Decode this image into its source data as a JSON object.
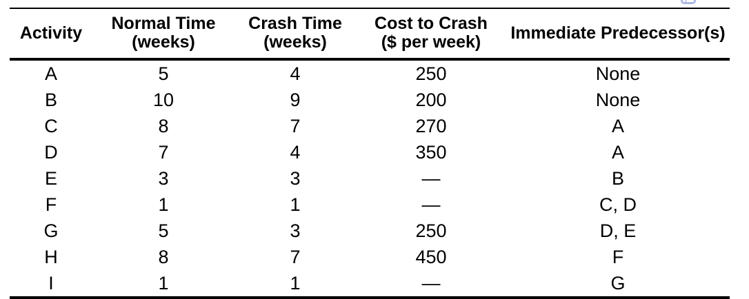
{
  "table": {
    "columns": [
      "Activity",
      "Normal Time\n(weeks)",
      "Crash Time\n(weeks)",
      "Cost to Crash\n($ per week)",
      "Immediate Predecessor(s)"
    ],
    "rows": [
      [
        "A",
        "5",
        "4",
        "250",
        "None"
      ],
      [
        "B",
        "10",
        "9",
        "200",
        "None"
      ],
      [
        "C",
        "8",
        "7",
        "270",
        "A"
      ],
      [
        "D",
        "7",
        "4",
        "350",
        "A"
      ],
      [
        "E",
        "3",
        "3",
        "—",
        "B"
      ],
      [
        "F",
        "1",
        "1",
        "—",
        "C, D"
      ],
      [
        "G",
        "5",
        "3",
        "250",
        "D, E"
      ],
      [
        "H",
        "8",
        "7",
        "450",
        "F"
      ],
      [
        "I",
        "1",
        "1",
        "—",
        "G"
      ]
    ]
  },
  "icons": {
    "corner": "window-icon"
  },
  "colors": {
    "background": "#ffffff",
    "text": "#000000",
    "rule": "#000000",
    "corner_icon": "#aeb8e6"
  }
}
